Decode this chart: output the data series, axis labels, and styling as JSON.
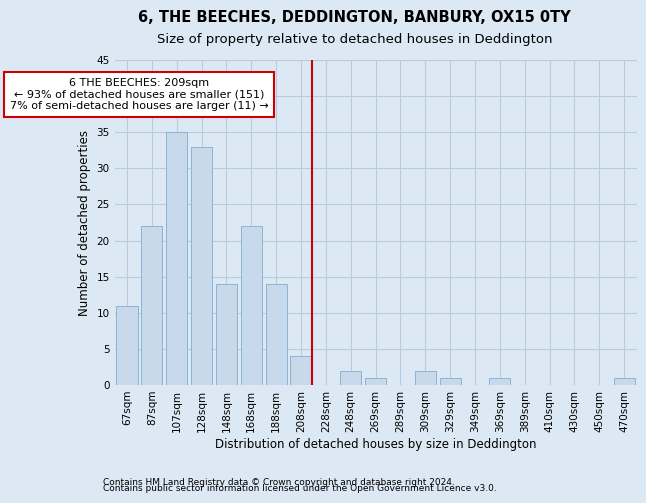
{
  "title": "6, THE BEECHES, DEDDINGTON, BANBURY, OX15 0TY",
  "subtitle": "Size of property relative to detached houses in Deddington",
  "xlabel": "Distribution of detached houses by size in Deddington",
  "ylabel": "Number of detached properties",
  "categories": [
    "67sqm",
    "87sqm",
    "107sqm",
    "128sqm",
    "148sqm",
    "168sqm",
    "188sqm",
    "208sqm",
    "228sqm",
    "248sqm",
    "269sqm",
    "289sqm",
    "309sqm",
    "329sqm",
    "349sqm",
    "369sqm",
    "389sqm",
    "410sqm",
    "430sqm",
    "450sqm",
    "470sqm"
  ],
  "values": [
    11,
    22,
    35,
    33,
    14,
    22,
    14,
    4,
    0,
    2,
    1,
    0,
    2,
    1,
    0,
    1,
    0,
    0,
    0,
    0,
    1
  ],
  "bar_color": "#c9d9ec",
  "bar_edge_color": "#8ab4d4",
  "marker_bin_index": 7,
  "marker_color": "#cc0000",
  "annotation_line1": "6 THE BEECHES: 209sqm",
  "annotation_line2": "← 93% of detached houses are smaller (151)",
  "annotation_line3": "7% of semi-detached houses are larger (11) →",
  "annotation_box_color": "white",
  "annotation_box_edge_color": "#cc0000",
  "ylim": [
    0,
    45
  ],
  "yticks": [
    0,
    5,
    10,
    15,
    20,
    25,
    30,
    35,
    40,
    45
  ],
  "grid_color": "#b8ccde",
  "background_color": "#dce9f5",
  "footer_line1": "Contains HM Land Registry data © Crown copyright and database right 2024.",
  "footer_line2": "Contains public sector information licensed under the Open Government Licence v3.0.",
  "title_fontsize": 10.5,
  "subtitle_fontsize": 9.5,
  "tick_fontsize": 7.5,
  "xlabel_fontsize": 8.5,
  "ylabel_fontsize": 8.5,
  "annotation_fontsize": 8,
  "footer_fontsize": 6.5
}
